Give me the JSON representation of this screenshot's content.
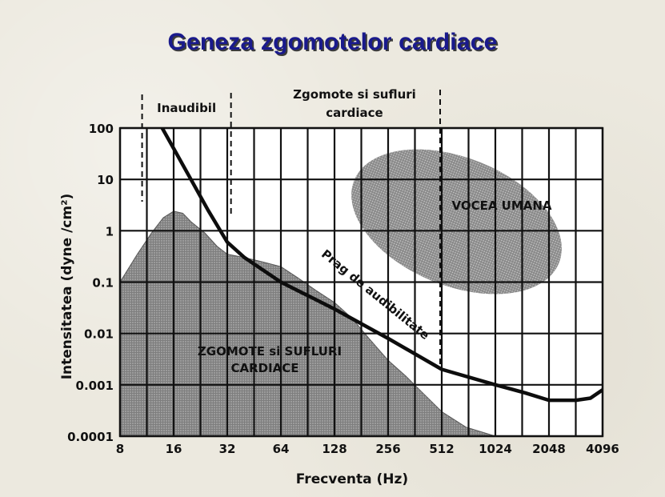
{
  "title": "Geneza zgomotelor cardiace",
  "chart_data": {
    "type": "area",
    "xlabel": "Frecventa (Hz)",
    "ylabel": "Intensitatea (dyne /cm²)",
    "x_ticks": [
      "8",
      "16",
      "32",
      "64",
      "128",
      "256",
      "512",
      "1024",
      "2048",
      "4096"
    ],
    "y_ticks": [
      "0.0001",
      "0.001",
      "0.01",
      "0.1",
      "1",
      "10",
      "100"
    ],
    "x_scale": "log2",
    "y_scale": "log10",
    "xlim": [
      8,
      4096
    ],
    "ylim": [
      0.0001,
      100
    ],
    "grid": true,
    "regions": {
      "inaudible": {
        "label": "Inaudibil",
        "x_range": [
          10,
          35
        ]
      },
      "cardiac": {
        "label_line1": "Zgomote si sufluri",
        "label_line2": "cardiace",
        "x_range": [
          35,
          512
        ]
      }
    },
    "series": [
      {
        "name": "Prag de audibilitate",
        "kind": "line",
        "x": [
          13.8,
          16,
          20,
          25,
          32,
          40,
          64,
          128,
          256,
          512,
          1024,
          1500,
          2048,
          2900,
          3500,
          4096
        ],
        "y": [
          100,
          40,
          10,
          2.5,
          0.6,
          0.3,
          0.1,
          0.03,
          0.008,
          0.002,
          0.001,
          0.0007,
          0.0005,
          0.0005,
          0.00055,
          0.0008
        ]
      },
      {
        "name": "ZGOMOTE si SUFLURI CARDIACE",
        "label_line1": "ZGOMOTE si SUFLURI",
        "label_line2": "CARDIACE",
        "kind": "area",
        "x": [
          8,
          10,
          12,
          14,
          16,
          18,
          20,
          24,
          28,
          32,
          40,
          50,
          64,
          80,
          100,
          128,
          160,
          200,
          256,
          320,
          400,
          512,
          700,
          1024
        ],
        "y": [
          0.1,
          0.35,
          0.9,
          1.8,
          2.4,
          2.2,
          1.5,
          0.9,
          0.5,
          0.35,
          0.3,
          0.25,
          0.2,
          0.12,
          0.07,
          0.04,
          0.02,
          0.008,
          0.003,
          0.0015,
          0.0007,
          0.0003,
          0.00015,
          0.0001
        ]
      },
      {
        "name": "VOCEA UMANA",
        "kind": "region",
        "center": {
          "x": 620,
          "y": 1.5
        }
      }
    ]
  },
  "colors": {
    "area_fill": "#8f8f8f",
    "voice_fill": "#9a9a9a",
    "plot_bg": "#ffffff",
    "title": "#1a1a8c"
  }
}
